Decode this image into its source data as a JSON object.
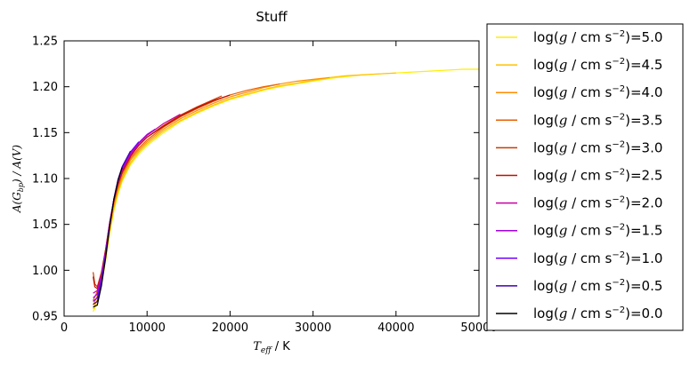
{
  "chart_data": {
    "type": "line",
    "title": "Stuff",
    "xlabel": {
      "var": "T",
      "sub": "eff",
      "unit": " / K"
    },
    "ylabel": {
      "text": "A(G",
      "sub": "bp",
      "rest": ") / A(V)"
    },
    "xlim": [
      0,
      50000
    ],
    "ylim": [
      0.95,
      1.25
    ],
    "x_ticks": [
      "0",
      "10000",
      "20000",
      "30000",
      "40000",
      "50000"
    ],
    "y_ticks": [
      "0.95",
      "1.00",
      "1.05",
      "1.10",
      "1.15",
      "1.20",
      "1.25"
    ],
    "legend_position": "right, outside",
    "legend_label": {
      "pre": "log(",
      "var": "g",
      "mid": " / cm s",
      "sup": "−2",
      "post": ")="
    },
    "series": [
      {
        "logg": "5.0",
        "color": "#ffee00",
        "points": [
          [
            3500,
            0.955
          ],
          [
            4000,
            0.965
          ],
          [
            4500,
            0.985
          ],
          [
            5000,
            1.01
          ],
          [
            5500,
            1.04
          ],
          [
            6000,
            1.065
          ],
          [
            6500,
            1.083
          ],
          [
            7000,
            1.097
          ],
          [
            8000,
            1.115
          ],
          [
            9000,
            1.127
          ],
          [
            10000,
            1.136
          ],
          [
            12000,
            1.15
          ],
          [
            14000,
            1.162
          ],
          [
            16000,
            1.171
          ],
          [
            18000,
            1.179
          ],
          [
            20000,
            1.186
          ],
          [
            22000,
            1.191
          ],
          [
            24000,
            1.196
          ],
          [
            26000,
            1.2
          ],
          [
            28000,
            1.203
          ],
          [
            30000,
            1.206
          ],
          [
            32000,
            1.209
          ],
          [
            34000,
            1.211
          ],
          [
            36000,
            1.213
          ],
          [
            38000,
            1.214
          ],
          [
            40000,
            1.215
          ],
          [
            42000,
            1.216
          ],
          [
            44000,
            1.217
          ],
          [
            46000,
            1.218
          ],
          [
            48000,
            1.219
          ],
          [
            50000,
            1.219
          ]
        ]
      },
      {
        "logg": "4.5",
        "color": "#ffc000",
        "points": [
          [
            3500,
            0.958
          ],
          [
            4000,
            0.968
          ],
          [
            4500,
            0.988
          ],
          [
            5000,
            1.013
          ],
          [
            5500,
            1.043
          ],
          [
            6000,
            1.068
          ],
          [
            6500,
            1.086
          ],
          [
            7000,
            1.099
          ],
          [
            8000,
            1.117
          ],
          [
            9000,
            1.129
          ],
          [
            10000,
            1.138
          ],
          [
            12000,
            1.152
          ],
          [
            14000,
            1.163
          ],
          [
            16000,
            1.172
          ],
          [
            18000,
            1.18
          ],
          [
            20000,
            1.187
          ],
          [
            22000,
            1.192
          ],
          [
            24000,
            1.197
          ],
          [
            26000,
            1.201
          ],
          [
            28000,
            1.204
          ],
          [
            30000,
            1.207
          ],
          [
            32000,
            1.21
          ],
          [
            34000,
            1.212
          ],
          [
            36000,
            1.213
          ],
          [
            38000,
            1.214
          ],
          [
            40000,
            1.215
          ]
        ]
      },
      {
        "logg": "4.0",
        "color": "#ff8c00",
        "points": [
          [
            3500,
            0.962
          ],
          [
            4000,
            0.972
          ],
          [
            4500,
            0.991
          ],
          [
            5000,
            1.016
          ],
          [
            5500,
            1.046
          ],
          [
            6000,
            1.071
          ],
          [
            6500,
            1.089
          ],
          [
            7000,
            1.102
          ],
          [
            8000,
            1.12
          ],
          [
            9000,
            1.131
          ],
          [
            10000,
            1.14
          ],
          [
            12000,
            1.154
          ],
          [
            14000,
            1.165
          ],
          [
            16000,
            1.174
          ],
          [
            18000,
            1.182
          ],
          [
            20000,
            1.189
          ],
          [
            22000,
            1.194
          ],
          [
            24000,
            1.199
          ],
          [
            26000,
            1.203
          ],
          [
            28000,
            1.206
          ],
          [
            30000,
            1.208
          ],
          [
            32000,
            1.21
          ]
        ]
      },
      {
        "logg": "3.5",
        "color": "#e85f00",
        "points": [
          [
            3500,
            0.967
          ],
          [
            4000,
            0.977
          ],
          [
            4500,
            0.995
          ],
          [
            5000,
            1.02
          ],
          [
            5500,
            1.05
          ],
          [
            6000,
            1.074
          ],
          [
            6500,
            1.092
          ],
          [
            7000,
            1.105
          ],
          [
            8000,
            1.122
          ],
          [
            9000,
            1.133
          ],
          [
            10000,
            1.142
          ],
          [
            12000,
            1.156
          ],
          [
            14000,
            1.167
          ],
          [
            16000,
            1.176
          ],
          [
            18000,
            1.184
          ],
          [
            20000,
            1.191
          ],
          [
            22000,
            1.196
          ],
          [
            24000,
            1.2
          ],
          [
            26000,
            1.203
          ]
        ]
      },
      {
        "logg": "3.0",
        "color": "#c83a00",
        "points": [
          [
            3500,
            0.998
          ],
          [
            3700,
            0.985
          ],
          [
            4000,
            0.982
          ],
          [
            4500,
            0.998
          ],
          [
            5000,
            1.023
          ],
          [
            5500,
            1.053
          ],
          [
            6000,
            1.077
          ],
          [
            6500,
            1.095
          ],
          [
            7000,
            1.108
          ],
          [
            8000,
            1.125
          ],
          [
            9000,
            1.136
          ],
          [
            10000,
            1.145
          ],
          [
            12000,
            1.158
          ],
          [
            14000,
            1.169
          ],
          [
            16000,
            1.178
          ],
          [
            18000,
            1.186
          ],
          [
            19000,
            1.19
          ]
        ]
      },
      {
        "logg": "2.5",
        "color": "#c00c00",
        "points": [
          [
            3500,
            0.993
          ],
          [
            3700,
            0.982
          ],
          [
            4000,
            0.98
          ],
          [
            4500,
            0.996
          ],
          [
            5000,
            1.022
          ],
          [
            5500,
            1.052
          ],
          [
            6000,
            1.076
          ],
          [
            6500,
            1.094
          ],
          [
            7000,
            1.107
          ],
          [
            8000,
            1.124
          ],
          [
            9000,
            1.136
          ],
          [
            10000,
            1.145
          ],
          [
            12000,
            1.157
          ],
          [
            14000,
            1.168
          ],
          [
            16000,
            1.177
          ],
          [
            18000,
            1.185
          ],
          [
            20000,
            1.191
          ]
        ]
      },
      {
        "logg": "2.0",
        "color": "#c800a0",
        "points": [
          [
            3500,
            0.975
          ],
          [
            4000,
            0.978
          ],
          [
            4500,
            0.995
          ],
          [
            5000,
            1.021
          ],
          [
            5500,
            1.052
          ],
          [
            6000,
            1.077
          ],
          [
            6500,
            1.096
          ],
          [
            7000,
            1.109
          ],
          [
            8000,
            1.126
          ],
          [
            9000,
            1.138
          ],
          [
            10000,
            1.147
          ],
          [
            12000,
            1.16
          ],
          [
            14000,
            1.17
          ]
        ]
      },
      {
        "logg": "1.5",
        "color": "#a000e0",
        "points": [
          [
            3500,
            0.97
          ],
          [
            4000,
            0.974
          ],
          [
            4500,
            0.992
          ],
          [
            5000,
            1.019
          ],
          [
            5500,
            1.051
          ],
          [
            6000,
            1.078
          ],
          [
            6500,
            1.097
          ],
          [
            7000,
            1.111
          ],
          [
            8000,
            1.128
          ],
          [
            9000,
            1.139
          ],
          [
            10000,
            1.148
          ],
          [
            11000,
            1.154
          ]
        ]
      },
      {
        "logg": "1.0",
        "color": "#7000ff",
        "points": [
          [
            3500,
            0.966
          ],
          [
            4000,
            0.97
          ],
          [
            4500,
            0.989
          ],
          [
            5000,
            1.017
          ],
          [
            5500,
            1.05
          ],
          [
            6000,
            1.078
          ],
          [
            6500,
            1.098
          ],
          [
            7000,
            1.112
          ],
          [
            8000,
            1.129
          ],
          [
            9000,
            1.14
          ]
        ]
      },
      {
        "logg": "0.5",
        "color": "#4000b0",
        "points": [
          [
            3500,
            0.963
          ],
          [
            4000,
            0.966
          ],
          [
            4500,
            0.986
          ],
          [
            5000,
            1.015
          ],
          [
            5500,
            1.049
          ],
          [
            6000,
            1.078
          ],
          [
            6500,
            1.099
          ],
          [
            7000,
            1.113
          ],
          [
            8000,
            1.13
          ]
        ]
      },
      {
        "logg": "0.0",
        "color": "#000000",
        "points": [
          [
            3500,
            0.96
          ],
          [
            4000,
            0.962
          ],
          [
            4500,
            0.983
          ],
          [
            5000,
            1.013
          ],
          [
            5500,
            1.048
          ],
          [
            6000,
            1.077
          ],
          [
            6500,
            1.098
          ],
          [
            7000,
            1.112
          ]
        ]
      }
    ]
  }
}
